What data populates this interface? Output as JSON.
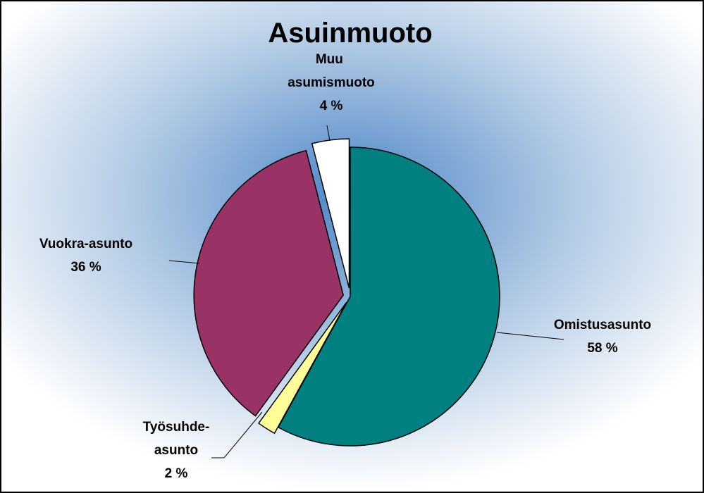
{
  "chart_data": {
    "type": "pie",
    "title": "Asuinmuoto",
    "categories": [
      "Omistusasunto",
      "Työsuhde-asunto",
      "Vuokra-asunto",
      "Muu asumismuoto"
    ],
    "values": [
      58,
      2,
      36,
      4
    ],
    "value_labels": [
      "58 %",
      "2 %",
      "36 %",
      "4 %"
    ],
    "colors": [
      "#008080",
      "#ffff99",
      "#993366",
      "#ffffff"
    ]
  }
}
